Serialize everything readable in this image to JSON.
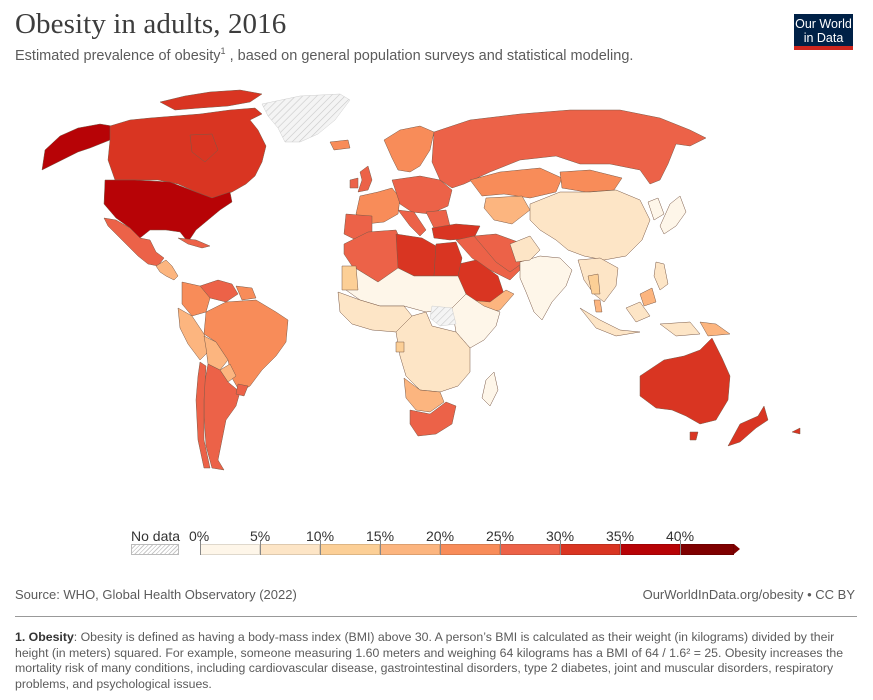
{
  "header": {
    "title": "Obesity in adults, 2016",
    "subtitle_pre": "Estimated prevalence of obesity",
    "subtitle_sup": "1",
    "subtitle_post": " , based on general population surveys and statistical modeling.",
    "logo_line1": "Our World",
    "logo_line2": "in Data"
  },
  "colors": {
    "logo_bg": "#002147",
    "logo_accent": "#ce261e",
    "no_data": "#e8e8e8"
  },
  "chart_data": {
    "type": "choropleth",
    "title": "Obesity in adults, 2016",
    "metric": "Share of adults with obesity (BMI > 30)",
    "unit": "%",
    "legend": {
      "no_data_label": "No data",
      "tick_labels": [
        "0%",
        "5%",
        "10%",
        "15%",
        "20%",
        "25%",
        "30%",
        "35%",
        "40%"
      ],
      "bins": [
        {
          "min": 0,
          "max": 5,
          "color": "#fef6e9"
        },
        {
          "min": 5,
          "max": 10,
          "color": "#fde5c6"
        },
        {
          "min": 10,
          "max": 15,
          "color": "#fccf96"
        },
        {
          "min": 15,
          "max": 20,
          "color": "#fcb57f"
        },
        {
          "min": 20,
          "max": 25,
          "color": "#f88c59"
        },
        {
          "min": 25,
          "max": 30,
          "color": "#ec6248"
        },
        {
          "min": 30,
          "max": 35,
          "color": "#d93522"
        },
        {
          "min": 35,
          "max": 40,
          "color": "#b70306"
        },
        {
          "min": 40,
          "max": null,
          "color": "#7f0000"
        }
      ]
    },
    "regions": [
      {
        "name": "United States",
        "bin": "35-40%"
      },
      {
        "name": "Alaska",
        "bin": "35-40%"
      },
      {
        "name": "Canada",
        "bin": "30-35%"
      },
      {
        "name": "Greenland",
        "bin": "No data"
      },
      {
        "name": "Mexico",
        "bin": "25-30%"
      },
      {
        "name": "Central America",
        "bin": "15-25%"
      },
      {
        "name": "Caribbean",
        "bin": "25-30%"
      },
      {
        "name": "Venezuela",
        "bin": "25-30%"
      },
      {
        "name": "Colombia",
        "bin": "20-25%"
      },
      {
        "name": "Brazil",
        "bin": "20-25%"
      },
      {
        "name": "Peru",
        "bin": "15-20%"
      },
      {
        "name": "Bolivia",
        "bin": "15-20%"
      },
      {
        "name": "Paraguay",
        "bin": "15-20%"
      },
      {
        "name": "Argentina",
        "bin": "25-30%"
      },
      {
        "name": "Chile",
        "bin": "25-30%"
      },
      {
        "name": "Uruguay",
        "bin": "25-30%"
      },
      {
        "name": "Iceland",
        "bin": "20-25%"
      },
      {
        "name": "United Kingdom",
        "bin": "25-30%"
      },
      {
        "name": "Western Europe",
        "bin": "20-30%"
      },
      {
        "name": "Scandinavia",
        "bin": "20-25%"
      },
      {
        "name": "Russia",
        "bin": "25-30%"
      },
      {
        "name": "Kazakhstan",
        "bin": "20-25%"
      },
      {
        "name": "Mongolia",
        "bin": "20-25%"
      },
      {
        "name": "Turkey",
        "bin": "30-35%"
      },
      {
        "name": "Iran",
        "bin": "25-30%"
      },
      {
        "name": "Libya",
        "bin": "30-35%"
      },
      {
        "name": "Egypt",
        "bin": "30-35%"
      },
      {
        "name": "Saudi Arabia",
        "bin": "30-35%"
      },
      {
        "name": "Algeria",
        "bin": "25-30%"
      },
      {
        "name": "Morocco",
        "bin": "25-30%"
      },
      {
        "name": "Sub-Saharan Africa",
        "bin": "0-15%"
      },
      {
        "name": "Sudan / South Sudan",
        "bin": "No data"
      },
      {
        "name": "South Africa",
        "bin": "25-30%"
      },
      {
        "name": "Namibia / Botswana",
        "bin": "15-20%"
      },
      {
        "name": "India",
        "bin": "0-5%"
      },
      {
        "name": "China",
        "bin": "5-10%"
      },
      {
        "name": "Japan / Korea",
        "bin": "0-5%"
      },
      {
        "name": "Southeast Asia",
        "bin": "5-15%"
      },
      {
        "name": "Malaysia",
        "bin": "15-20%"
      },
      {
        "name": "Papua New Guinea",
        "bin": "15-20%"
      },
      {
        "name": "Australia",
        "bin": "25-30%"
      },
      {
        "name": "New Zealand",
        "bin": "30-35%"
      }
    ]
  },
  "footer": {
    "source": "Source: WHO, Global Health Observatory (2022)",
    "credit": "OurWorldInData.org/obesity • CC BY",
    "note_label": "1. Obesity",
    "note_text": ": Obesity is defined as having a body-mass index (BMI) above 30. A person’s BMI is calculated as their weight (in kilograms) divided by their height (in meters) squared. For example, someone measuring 1.60 meters and weighing 64 kilograms has a BMI of 64 / 1.6² = 25. Obesity increases the mortality risk of many conditions, including cardiovascular disease, gastrointestinal disorders, type 2 diabetes, joint and muscular disorders, respiratory problems, and psychological issues."
  }
}
